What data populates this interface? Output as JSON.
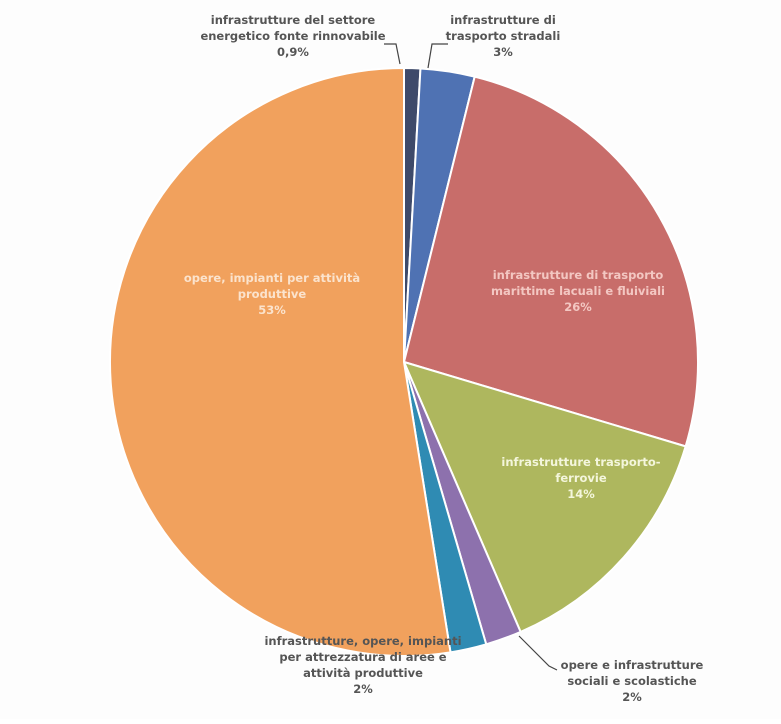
{
  "chart_data": {
    "type": "pie",
    "title": "",
    "slices": [
      {
        "label_lines": [
          "infrastrutture del settore",
          "energetico fonte rinnovabile"
        ],
        "value": 0.9,
        "value_label": "0,9%",
        "color": "#3e4a6a",
        "label_color": "#555555"
      },
      {
        "label_lines": [
          "infrastrutture di",
          "trasporto stradali"
        ],
        "value": 3,
        "value_label": "3%",
        "color": "#4f72b3",
        "label_color": "#555555"
      },
      {
        "label_lines": [
          "infrastrutture di trasporto",
          "marittime lacuali e fluiviali"
        ],
        "value": 26,
        "value_label": "26%",
        "color": "#c86d6a",
        "label_color": "#f3c7c2"
      },
      {
        "label_lines": [
          "infrastrutture trasporto-",
          "ferrovie"
        ],
        "value": 14,
        "value_label": "14%",
        "color": "#aeb75e",
        "label_color": "#f4f6dc"
      },
      {
        "label_lines": [
          "opere e infrastrutture",
          "sociali e scolastiche"
        ],
        "value": 2,
        "value_label": "2%",
        "color": "#8d71ad",
        "label_color": "#555555"
      },
      {
        "label_lines": [
          "infrastrutture, opere, impianti",
          "per attrezzatura di aree e",
          "attività produttive"
        ],
        "value": 2,
        "value_label": "2%",
        "color": "#2f8bb3",
        "label_color": "#555555"
      },
      {
        "label_lines": [
          "opere, impianti per attività",
          "produttive"
        ],
        "value": 53,
        "value_label": "53%",
        "color": "#f1a15d",
        "label_color": "#fbe3cd"
      }
    ]
  }
}
